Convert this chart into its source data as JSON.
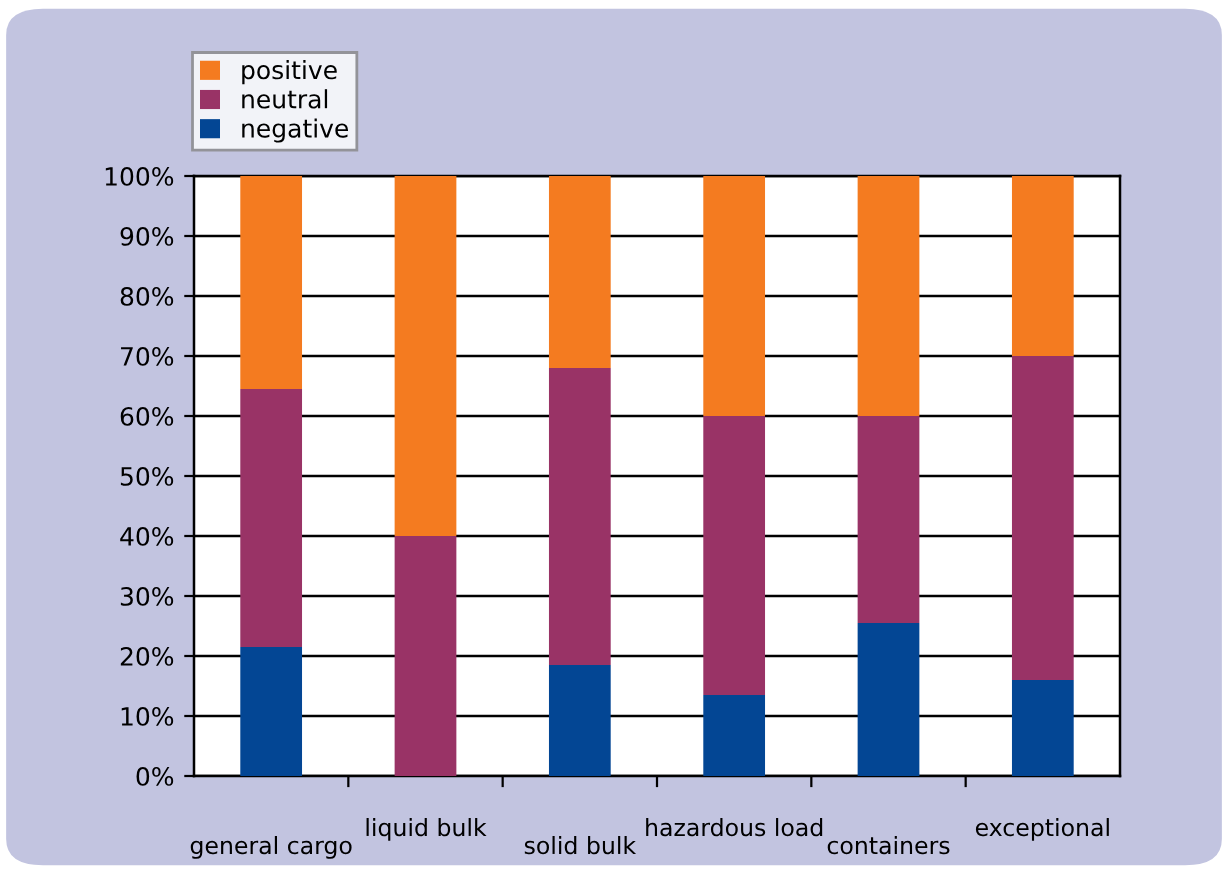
{
  "chart_data": {
    "type": "bar",
    "stacked": true,
    "categories": [
      "general cargo",
      "liquid bulk",
      "solid bulk",
      "hazardous load",
      "containers",
      "exceptional"
    ],
    "series": [
      {
        "name": "negative",
        "color": "#034694",
        "values": [
          21.5,
          0,
          18.5,
          13.5,
          25.5,
          16
        ]
      },
      {
        "name": "neutral",
        "color": "#993366",
        "values": [
          43,
          40,
          49.5,
          46.5,
          34.5,
          54
        ]
      },
      {
        "name": "positive",
        "color": "#f47b20",
        "values": [
          35.5,
          60,
          32,
          40,
          40,
          30
        ]
      }
    ],
    "ylim": [
      0,
      100
    ],
    "yticks": [
      {
        "value": 0,
        "label": "0%"
      },
      {
        "value": 10,
        "label": "10%"
      },
      {
        "value": 20,
        "label": "20%"
      },
      {
        "value": 30,
        "label": "30%"
      },
      {
        "value": 40,
        "label": "40%"
      },
      {
        "value": 50,
        "label": "50%"
      },
      {
        "value": 60,
        "label": "60%"
      },
      {
        "value": 70,
        "label": "70%"
      },
      {
        "value": 80,
        "label": "80%"
      },
      {
        "value": 90,
        "label": "90%"
      },
      {
        "value": 100,
        "label": "100%"
      }
    ],
    "grid": "y",
    "legend": "top left"
  }
}
